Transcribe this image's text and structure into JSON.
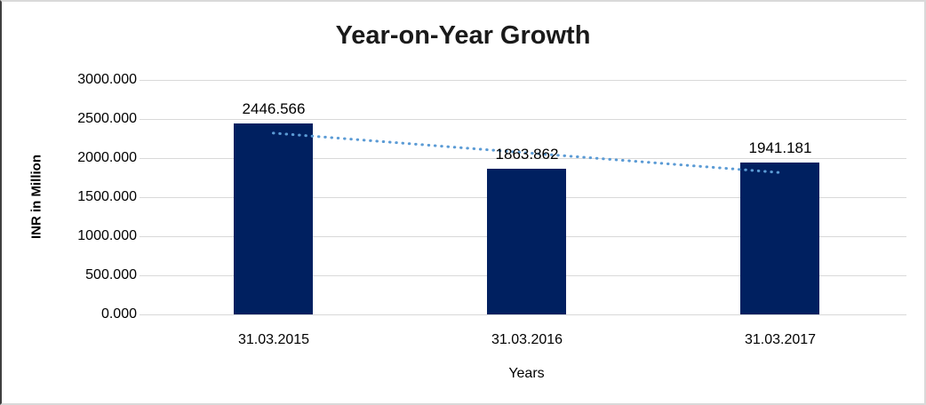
{
  "chart_data": {
    "type": "bar",
    "title": "Year-on-Year Growth",
    "xlabel": "Years",
    "ylabel": "INR in Million",
    "categories": [
      "31.03.2015",
      "31.03.2016",
      "31.03.2017"
    ],
    "values": [
      2446.566,
      1863.862,
      1941.181
    ],
    "data_labels": [
      "2446.566",
      "1863.862",
      "1941.181"
    ],
    "ylim": [
      0,
      3000
    ],
    "ytick_step": 500,
    "ytick_labels": [
      "3000.000",
      "2500.000",
      "2000.000",
      "1500.000",
      "1000.000",
      "500.000",
      "0.000"
    ],
    "grid": true,
    "legend": "none",
    "trendline": {
      "style": "dotted",
      "start_value": 2320,
      "end_value": 1815,
      "start_category_index": 0,
      "end_category_index": 2
    }
  },
  "colors": {
    "bar": "#002060",
    "trendline": "#5b9bd5",
    "gridline": "#d9d9d9",
    "text": "#000000",
    "title_text": "#1a1a1a",
    "background": "#ffffff"
  }
}
